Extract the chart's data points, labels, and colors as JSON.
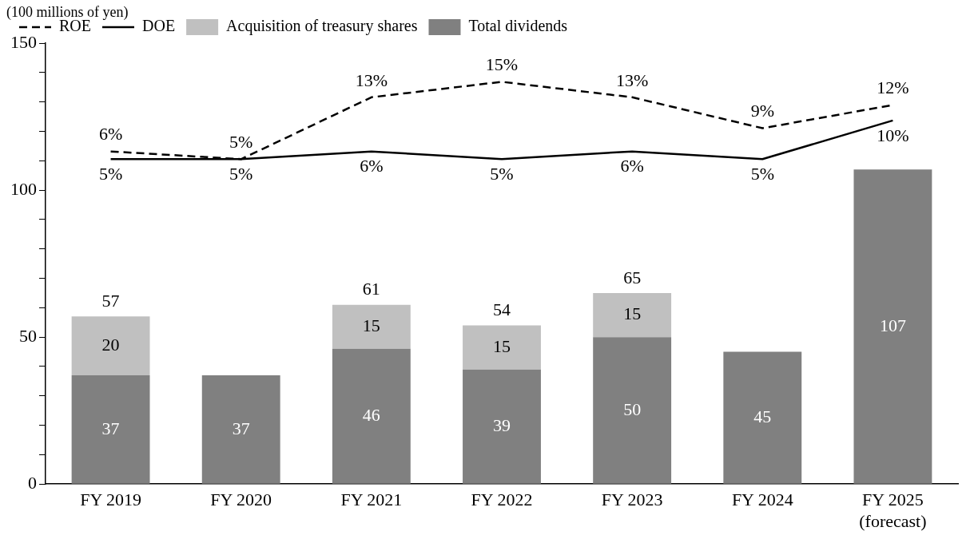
{
  "chart_data": {
    "type": "bar",
    "ylabel": "(100 millions of yen)",
    "categories": [
      "FY 2019",
      "FY 2020",
      "FY 2021",
      "FY 2022",
      "FY 2023",
      "FY 2024",
      "FY 2025\n(forecast)"
    ],
    "stacked": true,
    "series": [
      {
        "name": "Total dividends",
        "color": "#808080",
        "values": [
          37,
          37,
          46,
          39,
          50,
          45,
          107
        ],
        "data_labels": true
      },
      {
        "name": "Acquisition of treasury shares",
        "color": "#c0c0c0",
        "values": [
          20,
          null,
          15,
          15,
          15,
          null,
          null
        ],
        "data_labels": true
      },
      {
        "name": "DOE",
        "type": "line",
        "axis": "y2",
        "color": "#000000",
        "line_style": "solid",
        "values": [
          5,
          5,
          6,
          5,
          6,
          5,
          10
        ],
        "value_labels": [
          "5%",
          "5%",
          "6%",
          "5%",
          "6%",
          "5%",
          "10%"
        ]
      },
      {
        "name": "ROE",
        "type": "line",
        "axis": "y2",
        "color": "#000000",
        "line_style": "dashed",
        "values": [
          6,
          5,
          13,
          15,
          13,
          9,
          12
        ],
        "value_labels": [
          "6%",
          "5%",
          "13%",
          "15%",
          "13%",
          "9%",
          "12%"
        ]
      }
    ],
    "totals": [
      "57",
      null,
      "61",
      "54",
      "65",
      null,
      null
    ],
    "ylim": [
      0,
      150
    ],
    "yticks": [
      0,
      {
        "value": 10,
        "label": null
      },
      {
        "value": 20,
        "label": null
      },
      {
        "value": 30,
        "label": null
      },
      {
        "value": 40,
        "label": null
      },
      50,
      {
        "value": 60,
        "label": null
      },
      {
        "value": 70,
        "label": null
      },
      {
        "value": 80,
        "label": null
      },
      {
        "value": 90,
        "label": null
      },
      100,
      {
        "value": 110,
        "label": null
      },
      {
        "value": 120,
        "label": null
      },
      {
        "value": 130,
        "label": null
      },
      {
        "value": 140,
        "label": null
      },
      150
    ],
    "y2lim": [
      -37,
      20
    ],
    "marker": "none",
    "grid": false,
    "legend": "top left"
  }
}
